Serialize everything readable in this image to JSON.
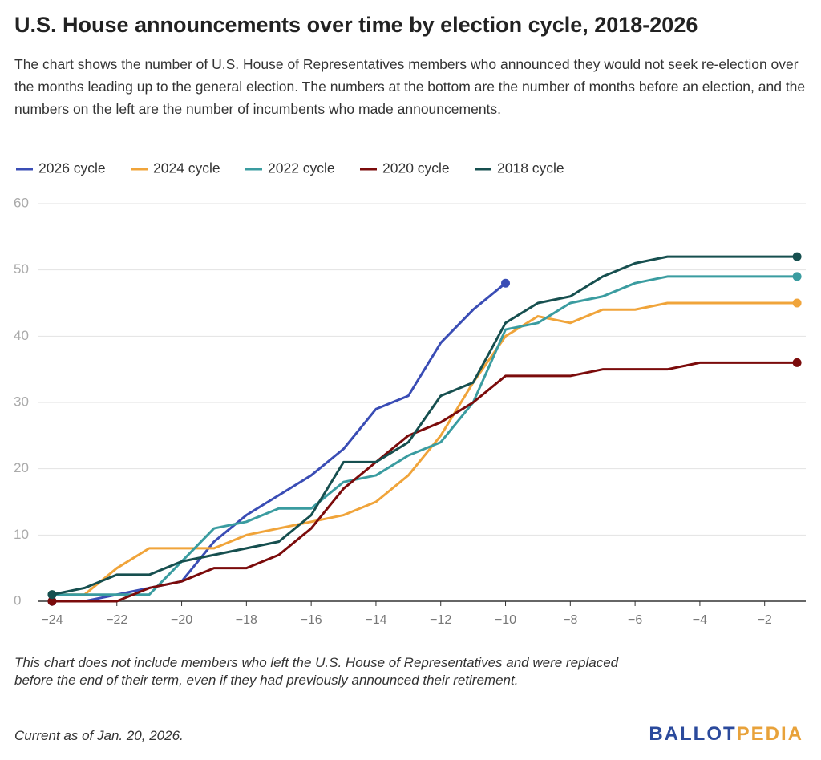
{
  "chart_data": {
    "type": "line",
    "title": "U.S. House announcements over time by election cycle, 2018-2026",
    "subtitle": "The chart shows the number of U.S. House of Representatives members who announced they would not seek re-election over the months leading up to the general election. The numbers at the bottom are the number of months before an election, and the numbers on the left are the number of incumbents who made announcements.",
    "note": "This chart does not include members who left the U.S. House of Representatives and were replaced before the end of their term, even if they had previously announced their retirement.",
    "x": [
      -24,
      -23,
      -22,
      -21,
      -20,
      -19,
      -18,
      -17,
      -16,
      -15,
      -14,
      -13,
      -12,
      -11,
      -10,
      -9,
      -8,
      -7,
      -6,
      -5,
      -4,
      -3,
      -2,
      -1
    ],
    "series": [
      {
        "name": "2026 cycle",
        "color": "#3a4db5",
        "values": [
          0,
          0,
          1,
          2,
          3,
          9,
          13,
          16,
          19,
          23,
          29,
          31,
          39,
          44,
          48,
          null,
          null,
          null,
          null,
          null,
          null,
          null,
          null,
          null
        ]
      },
      {
        "name": "2024 cycle",
        "color": "#f0a43a",
        "values": [
          1,
          1,
          5,
          8,
          8,
          8,
          10,
          11,
          12,
          13,
          15,
          19,
          25,
          33,
          40,
          43,
          42,
          44,
          44,
          45,
          45,
          45,
          45,
          45
        ]
      },
      {
        "name": "2022 cycle",
        "color": "#3a9ca0",
        "values": [
          1,
          1,
          1,
          1,
          6,
          11,
          12,
          14,
          14,
          18,
          19,
          22,
          24,
          30,
          41,
          42,
          45,
          46,
          48,
          49,
          49,
          49,
          49,
          49
        ]
      },
      {
        "name": "2020 cycle",
        "color": "#7b0b0b",
        "values": [
          0,
          0,
          0,
          2,
          3,
          5,
          5,
          7,
          11,
          17,
          21,
          25,
          27,
          30,
          34,
          34,
          34,
          35,
          35,
          35,
          36,
          36,
          36,
          36
        ]
      },
      {
        "name": "2018 cycle",
        "color": "#164f4f",
        "values": [
          1,
          2,
          4,
          4,
          6,
          7,
          8,
          9,
          13,
          21,
          21,
          24,
          31,
          33,
          42,
          45,
          46,
          49,
          51,
          52,
          52,
          52,
          52,
          52
        ]
      }
    ],
    "xlim": [
      -24.42,
      -0.73
    ],
    "xticks": [
      {
        "value": -24,
        "label": "−24"
      },
      {
        "value": -22,
        "label": "−22"
      },
      {
        "value": -20,
        "label": "−20"
      },
      {
        "value": -18,
        "label": "−18"
      },
      {
        "value": -16,
        "label": "−16"
      },
      {
        "value": -14,
        "label": "−14"
      },
      {
        "value": -12,
        "label": "−12"
      },
      {
        "value": -10,
        "label": "−10"
      },
      {
        "value": -8,
        "label": "−8"
      },
      {
        "value": -6,
        "label": "−6"
      },
      {
        "value": -4,
        "label": "−4"
      },
      {
        "value": -2,
        "label": "−2"
      }
    ],
    "ylim": [
      0,
      60
    ],
    "yticks": [
      0,
      10,
      20,
      30,
      40,
      50,
      60
    ],
    "grid": true,
    "legend": "top"
  },
  "footer": {
    "date": "Current as of Jan. 20, 2026.",
    "logo_left": "BALLOT",
    "logo_right": "PEDIA"
  }
}
